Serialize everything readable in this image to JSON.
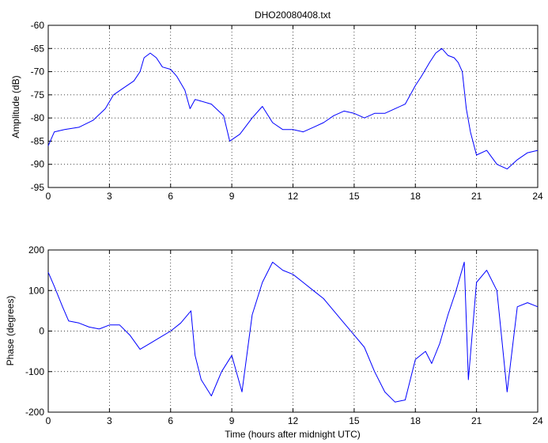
{
  "figure": {
    "title": "DHO20080408.txt",
    "line_color": "#0000ff"
  },
  "chart_data": [
    {
      "type": "line",
      "title": "DHO20080408.txt",
      "xlabel": "",
      "ylabel": "Amplitude (dB)",
      "xlim": [
        0,
        24
      ],
      "ylim": [
        -95,
        -60
      ],
      "xticks": [
        0,
        3,
        6,
        9,
        12,
        15,
        18,
        21,
        24
      ],
      "yticks": [
        -95,
        -90,
        -85,
        -80,
        -75,
        -70,
        -65,
        -60
      ],
      "grid": true,
      "series": [
        {
          "color": "#0000ff",
          "x": [
            0,
            0.3,
            0.8,
            1.5,
            2.2,
            2.8,
            3.2,
            3.7,
            4.2,
            4.5,
            4.7,
            5.0,
            5.3,
            5.6,
            6.0,
            6.3,
            6.7,
            6.95,
            7.2,
            8.0,
            8.6,
            8.9,
            9.4,
            10.0,
            10.5,
            11.0,
            11.5,
            12.0,
            12.5,
            13.0,
            13.5,
            14.0,
            14.5,
            15.0,
            15.5,
            16.0,
            16.5,
            17.0,
            17.5,
            18.0,
            18.3,
            18.7,
            19.0,
            19.3,
            19.6,
            19.9,
            20.1,
            20.3,
            20.5,
            20.7,
            21.0,
            21.5,
            22.0,
            22.5,
            23.0,
            23.5,
            24.0
          ],
          "y": [
            -86,
            -83,
            -82.5,
            -82,
            -80.5,
            -78,
            -75,
            -73.5,
            -72,
            -70,
            -67,
            -66,
            -67,
            -69,
            -69.5,
            -71,
            -74,
            -78,
            -76,
            -77,
            -79.5,
            -85,
            -83.5,
            -80,
            -77.5,
            -81,
            -82.5,
            -82.5,
            -83,
            -82,
            -81,
            -79.5,
            -78.5,
            -79,
            -80,
            -79,
            -79,
            -78,
            -77,
            -73,
            -71,
            -68,
            -66,
            -65,
            -66.5,
            -67,
            -68,
            -70,
            -78,
            -83,
            -88,
            -87,
            -90,
            -91,
            -89,
            -87.5,
            -87
          ]
        }
      ]
    },
    {
      "type": "line",
      "xlabel": "Time (hours after midnight UTC)",
      "ylabel": "Phase (degrees)",
      "xlim": [
        0,
        24
      ],
      "ylim": [
        -200,
        200
      ],
      "xticks": [
        0,
        3,
        6,
        9,
        12,
        15,
        18,
        21,
        24
      ],
      "yticks": [
        -200,
        -100,
        0,
        100,
        200
      ],
      "grid": true,
      "series": [
        {
          "color": "#0000ff",
          "x": [
            0,
            0.3,
            0.7,
            1.0,
            1.5,
            2.0,
            2.5,
            3.0,
            3.5,
            4.0,
            4.5,
            5.0,
            5.5,
            6.0,
            6.5,
            7.0,
            7.2,
            7.5,
            8.0,
            8.5,
            9.0,
            9.5,
            10.0,
            10.5,
            11.0,
            11.5,
            12.0,
            12.5,
            13.0,
            13.5,
            14.0,
            14.5,
            15.0,
            15.5,
            16.0,
            16.5,
            17.0,
            17.5,
            18.0,
            18.5,
            18.8,
            19.2,
            19.6,
            20.0,
            20.4,
            20.6,
            21.0,
            21.5,
            22.0,
            22.5,
            23.0,
            23.5,
            24.0
          ],
          "y": [
            145,
            110,
            60,
            25,
            20,
            10,
            5,
            15,
            15,
            -10,
            -45,
            -30,
            -15,
            0,
            20,
            50,
            -60,
            -120,
            -160,
            -100,
            -60,
            -150,
            40,
            120,
            170,
            150,
            140,
            120,
            100,
            80,
            50,
            20,
            -10,
            -40,
            -100,
            -150,
            -175,
            -170,
            -70,
            -50,
            -80,
            -30,
            40,
            100,
            170,
            -120,
            120,
            150,
            100,
            -150,
            60,
            70,
            60
          ]
        }
      ]
    }
  ]
}
